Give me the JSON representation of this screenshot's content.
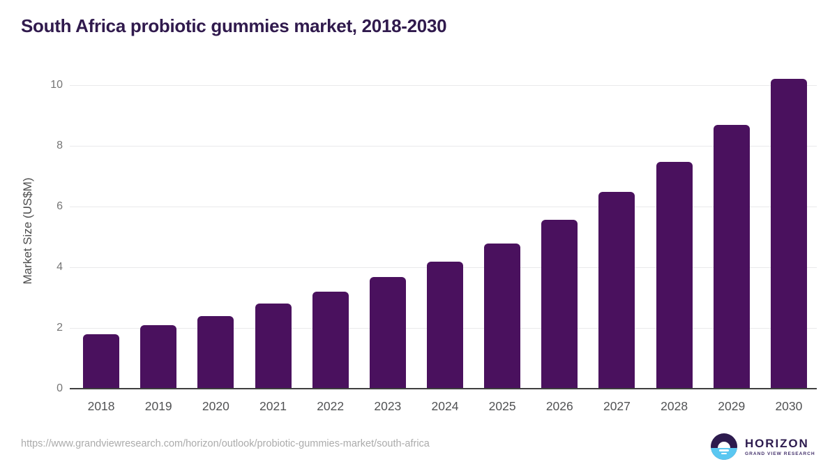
{
  "header": {
    "title": "South Africa probiotic gummies market, 2018-2030"
  },
  "footer": {
    "source_url": "https://www.grandviewresearch.com/horizon/outlook/probiotic-gummies-market/south-africa",
    "logo": {
      "brand": "HORIZON",
      "tagline": "GRAND VIEW RESEARCH"
    }
  },
  "colors": {
    "bar": "#4A115E",
    "title": "#301A4D",
    "axis_line": "#3F3F3F",
    "gridline": "#E9E9EB",
    "y_tick_label": "#757575",
    "x_tick_label": "#515254",
    "axis_title": "#4D4D4D",
    "source_url": "#ABABAB",
    "logo_navy": "#2D1B4E",
    "logo_blue": "#5AC7F1"
  },
  "chart_data": {
    "type": "bar",
    "title": "South Africa probiotic gummies market, 2018-2030",
    "categories": [
      "2018",
      "2019",
      "2020",
      "2021",
      "2022",
      "2023",
      "2024",
      "2025",
      "2026",
      "2027",
      "2028",
      "2029",
      "2030"
    ],
    "values": [
      1.8,
      2.1,
      2.4,
      2.81,
      3.2,
      3.68,
      4.18,
      4.78,
      5.57,
      6.48,
      7.46,
      8.69,
      10.21
    ],
    "xlabel": "",
    "ylabel": "Market Size (US$M)",
    "ylim": [
      0,
      10.5
    ],
    "yticks": [
      0,
      2,
      4,
      6,
      8,
      10
    ],
    "grid": true,
    "legend": false,
    "bar_style": "rounded-top"
  }
}
